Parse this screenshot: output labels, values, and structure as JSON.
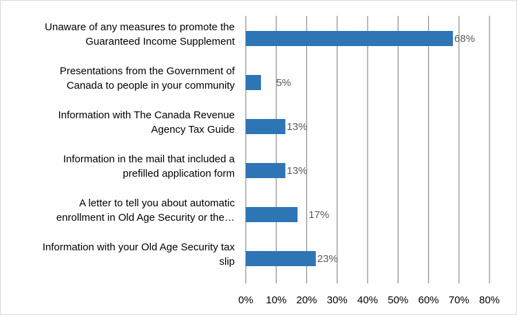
{
  "chart_data": {
    "type": "bar",
    "orientation": "horizontal",
    "title": "",
    "xlabel": "",
    "ylabel": "",
    "xlim": [
      0,
      80
    ],
    "grid": true,
    "bar_color": "#2e75b6",
    "categories": [
      {
        "lines": [
          "Unaware of any measures to promote the",
          "Guaranteed Income Supplement"
        ],
        "value": 68,
        "label": "68%"
      },
      {
        "lines": [
          "Presentations from the Government of",
          "Canada to people in your community"
        ],
        "value": 5,
        "label": "5%"
      },
      {
        "lines": [
          "Information with The Canada Revenue",
          "Agency Tax Guide"
        ],
        "value": 13,
        "label": "13%"
      },
      {
        "lines": [
          "Information in the mail that included a",
          "prefilled application form"
        ],
        "value": 13,
        "label": "13%"
      },
      {
        "lines": [
          "A letter to tell you about automatic",
          "enrollment in Old Age Security or the…"
        ],
        "value": 17,
        "label": "17%"
      },
      {
        "lines": [
          "Information with your Old Age Security tax",
          "slip"
        ],
        "value": 23,
        "label": "23%"
      }
    ],
    "ticks": [
      {
        "value": 0,
        "label": "0%"
      },
      {
        "value": 10,
        "label": "10%"
      },
      {
        "value": 20,
        "label": "20%"
      },
      {
        "value": 30,
        "label": "30%"
      },
      {
        "value": 40,
        "label": "40%"
      },
      {
        "value": 50,
        "label": "50%"
      },
      {
        "value": 60,
        "label": "60%"
      },
      {
        "value": 70,
        "label": "70%"
      },
      {
        "value": 80,
        "label": "80%"
      }
    ]
  }
}
